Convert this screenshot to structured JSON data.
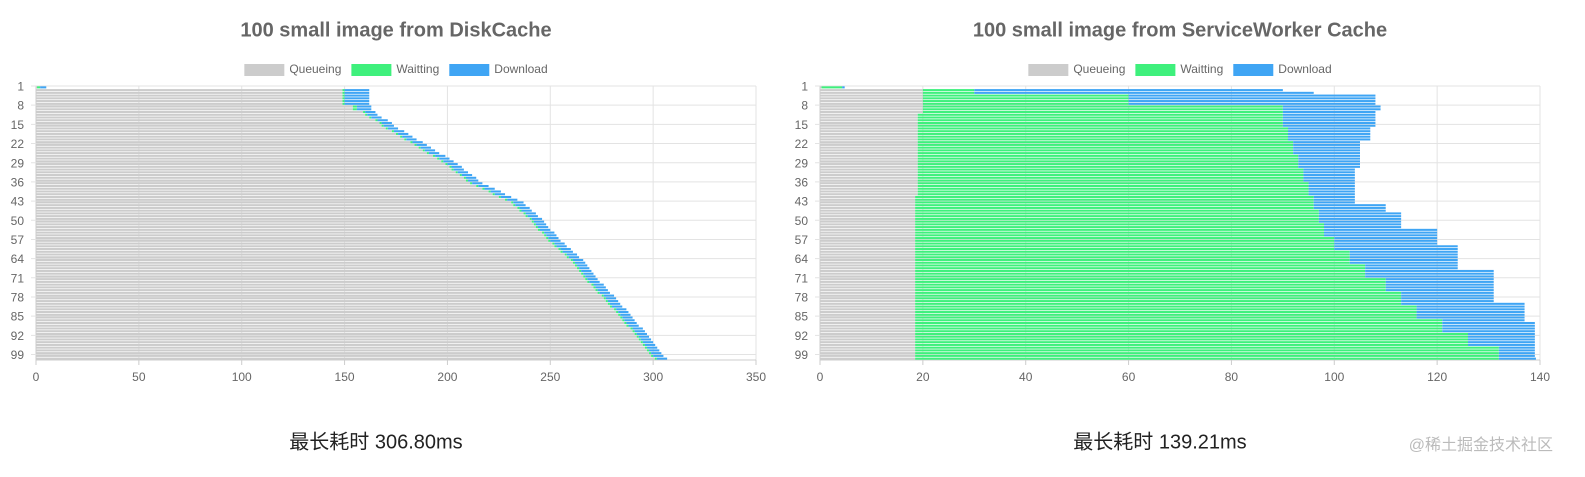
{
  "chart_data": [
    {
      "type": "stacked-bar-horizontal",
      "title": "100 small image from DiskCache",
      "categories": [
        "1",
        null,
        null,
        null,
        null,
        null,
        null,
        "8",
        null,
        null,
        null,
        null,
        null,
        null,
        "15",
        null,
        null,
        null,
        null,
        null,
        null,
        "22",
        null,
        null,
        null,
        null,
        null,
        null,
        "29",
        null,
        null,
        null,
        null,
        null,
        null,
        "36",
        null,
        null,
        null,
        null,
        null,
        null,
        "43",
        null,
        null,
        null,
        null,
        null,
        null,
        "50",
        null,
        null,
        null,
        null,
        null,
        null,
        "57",
        null,
        null,
        null,
        null,
        null,
        null,
        "64",
        null,
        null,
        null,
        null,
        null,
        null,
        "71",
        null,
        null,
        null,
        null,
        null,
        null,
        "78",
        null,
        null,
        null,
        null,
        null,
        null,
        "85",
        null,
        null,
        null,
        null,
        null,
        null,
        "92",
        null,
        null,
        null,
        null,
        null,
        null,
        "99",
        null
      ],
      "series": [
        {
          "name": "Queueing",
          "color": "#cccccc",
          "values": [
            0.5,
            149,
            149,
            149,
            149,
            149,
            149,
            154,
            154,
            159,
            160,
            162,
            165,
            167,
            168,
            170,
            173,
            175,
            177,
            179,
            182,
            184,
            186,
            188,
            190,
            193,
            195,
            197,
            199,
            201,
            202,
            204,
            206,
            208,
            209,
            211,
            214,
            217,
            220,
            222,
            225,
            228,
            231,
            232,
            234,
            235,
            237,
            238,
            240,
            241,
            242,
            243,
            244,
            246,
            247,
            248,
            249,
            251,
            252,
            254,
            255,
            257,
            258,
            260,
            261,
            262,
            263,
            264,
            265,
            266,
            267,
            268,
            270,
            271,
            272,
            273,
            275,
            276,
            277,
            278,
            279,
            281,
            282,
            283,
            284,
            285,
            286,
            287,
            289,
            290,
            291,
            292,
            293,
            294,
            295,
            296,
            297,
            298,
            299,
            300.8
          ]
        },
        {
          "name": "Waitting",
          "color": "#3ef07c",
          "values": [
            1.5,
            1,
            1,
            1,
            1,
            1,
            1,
            2,
            2,
            1,
            1,
            1,
            1,
            1,
            1,
            1,
            1,
            1,
            1,
            1,
            1,
            1,
            1,
            1,
            1,
            1,
            1,
            1,
            1,
            1,
            1,
            1,
            1,
            1,
            1,
            1,
            1,
            1,
            1,
            1,
            1,
            1,
            1,
            1,
            1,
            1,
            1,
            1,
            1,
            1,
            1,
            1,
            1,
            1,
            1,
            1,
            1,
            1,
            1,
            1,
            1,
            1,
            1,
            1,
            1,
            1,
            1,
            1,
            1,
            1,
            1,
            1,
            1,
            1,
            1,
            1,
            1,
            1,
            1,
            1,
            1,
            1,
            1,
            1,
            1,
            1,
            1,
            1,
            1,
            1,
            1,
            1,
            1,
            1,
            1,
            1,
            1,
            1,
            1,
            1
          ]
        },
        {
          "name": "Download",
          "color": "#3fa5f4",
          "values": [
            3,
            12,
            12,
            12,
            12,
            12,
            12,
            7,
            7,
            5,
            5,
            5,
            5,
            5,
            5,
            5,
            5,
            5,
            5,
            5,
            5,
            5,
            5,
            5,
            5,
            5,
            5,
            5,
            5,
            5,
            5,
            5,
            5,
            5,
            5,
            5,
            5,
            5,
            5,
            5,
            5,
            5,
            5,
            5,
            5,
            5,
            5,
            5,
            5,
            5,
            5,
            5,
            5,
            5,
            5,
            5,
            5,
            5,
            5,
            5,
            5,
            5,
            5,
            5,
            5,
            5,
            5,
            5,
            5,
            5,
            5,
            5,
            5,
            5,
            5,
            5,
            5,
            5,
            5,
            5,
            5,
            5,
            5,
            5,
            5,
            5,
            5,
            5,
            5,
            5,
            5,
            5,
            5,
            5,
            5,
            5,
            5,
            5,
            5,
            5
          ]
        }
      ],
      "xlim": [
        0,
        350
      ],
      "xticks": [
        0,
        50,
        100,
        150,
        200,
        250,
        300,
        350
      ],
      "grid": true,
      "legend": "top",
      "caption": "最长耗时 306.80ms"
    },
    {
      "type": "stacked-bar-horizontal",
      "title": "100 small image from ServiceWorker Cache",
      "categories": [
        "1",
        null,
        null,
        null,
        null,
        null,
        null,
        "8",
        null,
        null,
        null,
        null,
        null,
        null,
        "15",
        null,
        null,
        null,
        null,
        null,
        null,
        "22",
        null,
        null,
        null,
        null,
        null,
        null,
        "29",
        null,
        null,
        null,
        null,
        null,
        null,
        "36",
        null,
        null,
        null,
        null,
        null,
        null,
        "43",
        null,
        null,
        null,
        null,
        null,
        null,
        "50",
        null,
        null,
        null,
        null,
        null,
        null,
        "57",
        null,
        null,
        null,
        null,
        null,
        null,
        "64",
        null,
        null,
        null,
        null,
        null,
        null,
        "71",
        null,
        null,
        null,
        null,
        null,
        null,
        "78",
        null,
        null,
        null,
        null,
        null,
        null,
        "85",
        null,
        null,
        null,
        null,
        null,
        null,
        "92",
        null,
        null,
        null,
        null,
        null,
        null,
        "99",
        null
      ],
      "series": [
        {
          "name": "Queueing",
          "color": "#cccccc",
          "values": [
            0.3,
            20,
            20,
            20,
            20,
            20,
            20,
            20,
            20,
            20,
            19,
            19,
            19,
            19,
            19,
            19,
            19,
            19,
            19,
            19,
            19,
            19,
            19,
            19,
            19,
            19,
            19,
            19,
            19,
            19,
            19,
            19,
            19,
            19,
            19,
            19,
            19,
            19,
            19,
            19,
            18.5,
            18.5,
            18.5,
            18.5,
            18.5,
            18.5,
            18.5,
            18.5,
            18.5,
            18.5,
            18.5,
            18.5,
            18.5,
            18.5,
            18.5,
            18.5,
            18.5,
            18.5,
            18.5,
            18.5,
            18.5,
            18.5,
            18.5,
            18.5,
            18.5,
            18.5,
            18.5,
            18.5,
            18.5,
            18.5,
            18.5,
            18.5,
            18.5,
            18.5,
            18.5,
            18.5,
            18.5,
            18.5,
            18.5,
            18.5,
            18.5,
            18.5,
            18.5,
            18.5,
            18.5,
            18.5,
            18.5,
            18.5,
            18.5,
            18.5,
            18.5,
            18.5,
            18.5,
            18.5,
            18.5,
            18.5,
            18.5,
            18.5,
            18.5,
            18.5
          ]
        },
        {
          "name": "Waitting",
          "color": "#3ef07c",
          "values": [
            4,
            10,
            10,
            40,
            40,
            40,
            40,
            70,
            70,
            70,
            71,
            71,
            71,
            71,
            71,
            72,
            72,
            72,
            72,
            72,
            73,
            73,
            73,
            73,
            73,
            74,
            74,
            74,
            74,
            74,
            75,
            75,
            75,
            75,
            75,
            76,
            76,
            76,
            76,
            76,
            77.5,
            77.5,
            77.5,
            77.5,
            77.5,
            78.5,
            78.5,
            78.5,
            78.5,
            78.5,
            79.5,
            79.5,
            79.5,
            79.5,
            79.5,
            81.5,
            81.5,
            81.5,
            81.5,
            81.5,
            84.5,
            84.5,
            84.5,
            84.5,
            84.5,
            87.5,
            87.5,
            87.5,
            87.5,
            87.5,
            91.5,
            91.5,
            91.5,
            91.5,
            91.5,
            94.5,
            94.5,
            94.5,
            94.5,
            94.5,
            97.5,
            97.5,
            97.5,
            97.5,
            97.5,
            102.5,
            102.5,
            102.5,
            102.5,
            102.5,
            107.5,
            107.5,
            107.5,
            107.5,
            107.5,
            113.5,
            113.5,
            113.5,
            113.5,
            113.5
          ]
        },
        {
          "name": "Download",
          "color": "#3fa5f4",
          "values": [
            0.5,
            60,
            66,
            48,
            48,
            48,
            48,
            19,
            19,
            18,
            18,
            18,
            18,
            18,
            18,
            16,
            16,
            16,
            16,
            16,
            13,
            13,
            13,
            13,
            13,
            12,
            12,
            12,
            12,
            12,
            10,
            10,
            10,
            10,
            10,
            9,
            9,
            9,
            9,
            9,
            8,
            8,
            8,
            14,
            14,
            13,
            16,
            16,
            16,
            16,
            15,
            15,
            22,
            22,
            22,
            20,
            20,
            20,
            24,
            24,
            21,
            21,
            21,
            21,
            21,
            18,
            18,
            25,
            25,
            25,
            21,
            21,
            21,
            21,
            21,
            18,
            18,
            18,
            18,
            24,
            21,
            21,
            21,
            21,
            21,
            16,
            18,
            18,
            18,
            18,
            13,
            13,
            13,
            13,
            13,
            7,
            7,
            7,
            7,
            7.21
          ]
        }
      ],
      "xlim": [
        0,
        140
      ],
      "xticks": [
        0,
        20,
        40,
        60,
        80,
        100,
        120,
        140
      ],
      "grid": true,
      "legend": "top",
      "caption": "最长耗时 139.21ms"
    }
  ],
  "watermark": "@稀土掘金技术社区"
}
